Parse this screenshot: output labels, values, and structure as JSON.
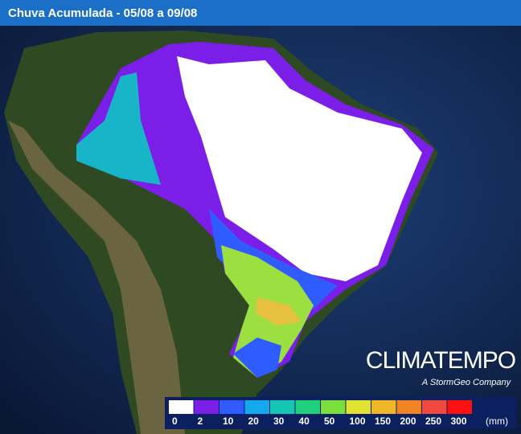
{
  "header": {
    "title": "Chuva Acumulada - 05/08 a 09/08"
  },
  "brand": {
    "name": "CLIMATEMPO",
    "tagline": "A StormGeo Company"
  },
  "legend": {
    "unit": "(mm)",
    "items": [
      {
        "value": 0,
        "color": "#ffffff"
      },
      {
        "value": 2,
        "color": "#7b1fe8"
      },
      {
        "value": 10,
        "color": "#2f5bff"
      },
      {
        "value": 20,
        "color": "#14a8ec"
      },
      {
        "value": 30,
        "color": "#16c6b4"
      },
      {
        "value": 40,
        "color": "#1fd07c"
      },
      {
        "value": 50,
        "color": "#7ade3c"
      },
      {
        "value": 100,
        "color": "#e2e232"
      },
      {
        "value": 150,
        "color": "#efb628"
      },
      {
        "value": 200,
        "color": "#f08424"
      },
      {
        "value": 250,
        "color": "#f04a40"
      },
      {
        "value": 300,
        "color": "#ff1010"
      }
    ]
  }
}
